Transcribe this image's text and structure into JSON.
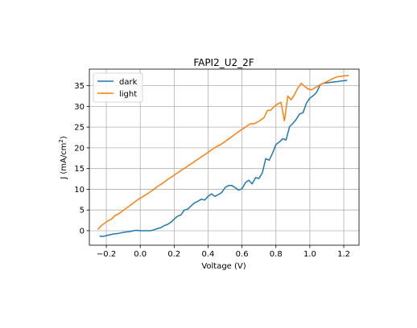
{
  "chart_data": {
    "type": "line",
    "title": "FAPI2_U2_2F",
    "xlabel": "Voltage (V)",
    "ylabel_main": "J (mA/cm",
    "ylabel_sup": "2",
    "ylabel_end": ")",
    "xlim": [
      -0.3,
      1.29
    ],
    "ylim": [
      -3.5,
      39
    ],
    "xticks": [
      -0.2,
      0.0,
      0.2,
      0.4,
      0.6,
      0.8,
      1.0,
      1.2
    ],
    "xtick_labels": [
      "−0.2",
      "0.0",
      "0.2",
      "0.4",
      "0.6",
      "0.8",
      "1.0",
      "1.2"
    ],
    "yticks": [
      0,
      5,
      10,
      15,
      20,
      25,
      30,
      35
    ],
    "ytick_labels": [
      "0",
      "5",
      "10",
      "15",
      "20",
      "25",
      "30",
      "35"
    ],
    "grid": true,
    "legend_position": "top-left",
    "series": [
      {
        "name": "dark",
        "color": "#1f77b4",
        "x": [
          -0.24,
          -0.22,
          -0.2,
          -0.18,
          -0.16,
          -0.14,
          -0.12,
          -0.1,
          -0.08,
          -0.06,
          -0.04,
          -0.02,
          0.0,
          0.02,
          0.04,
          0.06,
          0.08,
          0.1,
          0.12,
          0.14,
          0.16,
          0.18,
          0.2,
          0.22,
          0.24,
          0.26,
          0.28,
          0.3,
          0.32,
          0.34,
          0.36,
          0.38,
          0.4,
          0.42,
          0.44,
          0.46,
          0.48,
          0.5,
          0.52,
          0.54,
          0.56,
          0.58,
          0.6,
          0.62,
          0.64,
          0.66,
          0.68,
          0.7,
          0.72,
          0.74,
          0.76,
          0.78,
          0.8,
          0.82,
          0.84,
          0.86,
          0.88,
          0.9,
          0.92,
          0.94,
          0.96,
          0.98,
          1.0,
          1.02,
          1.04,
          1.06,
          1.08,
          1.1,
          1.12,
          1.14,
          1.16,
          1.18,
          1.2,
          1.22
        ],
        "y": [
          -1.3,
          -1.4,
          -1.2,
          -1.0,
          -0.8,
          -0.7,
          -0.6,
          -0.4,
          -0.3,
          -0.2,
          0.0,
          0.1,
          0.0,
          0.0,
          0.0,
          0.0,
          0.2,
          0.5,
          0.7,
          1.2,
          1.5,
          2.0,
          2.8,
          3.5,
          3.8,
          5.0,
          5.2,
          6.0,
          6.7,
          7.1,
          7.6,
          7.4,
          8.3,
          8.9,
          8.3,
          8.7,
          9.2,
          10.4,
          10.9,
          10.9,
          10.4,
          9.8,
          10.1,
          11.6,
          12.2,
          11.3,
          12.8,
          12.6,
          14.0,
          17.4,
          17.0,
          18.7,
          20.8,
          21.4,
          22.2,
          21.9,
          25.1,
          25.9,
          26.9,
          28.2,
          28.5,
          30.8,
          32.0,
          32.6,
          33.4,
          35.2,
          35.6,
          35.7,
          35.8,
          35.9,
          36.0,
          36.1,
          36.2,
          36.3
        ]
      },
      {
        "name": "light",
        "color": "#ff7f0e",
        "x": [
          -0.25,
          -0.23,
          -0.21,
          -0.19,
          -0.17,
          -0.15,
          -0.13,
          -0.11,
          -0.09,
          -0.07,
          -0.05,
          -0.03,
          -0.01,
          0.01,
          0.03,
          0.05,
          0.07,
          0.09,
          0.11,
          0.13,
          0.15,
          0.17,
          0.19,
          0.21,
          0.23,
          0.25,
          0.27,
          0.29,
          0.31,
          0.33,
          0.35,
          0.37,
          0.39,
          0.41,
          0.43,
          0.45,
          0.47,
          0.49,
          0.51,
          0.53,
          0.55,
          0.57,
          0.59,
          0.61,
          0.63,
          0.65,
          0.67,
          0.69,
          0.71,
          0.73,
          0.75,
          0.77,
          0.79,
          0.81,
          0.83,
          0.85,
          0.87,
          0.89,
          0.91,
          0.93,
          0.95,
          0.97,
          0.99,
          1.01,
          1.03,
          1.05,
          1.07,
          1.09,
          1.11,
          1.13,
          1.15,
          1.17,
          1.19,
          1.21,
          1.23
        ],
        "y": [
          0.3,
          1.2,
          1.8,
          2.4,
          2.8,
          3.6,
          4.0,
          4.6,
          5.2,
          5.8,
          6.4,
          7.0,
          7.6,
          8.1,
          8.6,
          9.1,
          9.7,
          10.3,
          10.9,
          11.4,
          12.0,
          12.6,
          13.1,
          13.7,
          14.2,
          14.8,
          15.3,
          15.9,
          16.4,
          17.0,
          17.5,
          18.1,
          18.6,
          19.2,
          19.8,
          20.3,
          20.7,
          21.2,
          21.8,
          22.4,
          23.0,
          23.6,
          24.2,
          24.7,
          25.3,
          25.8,
          25.8,
          26.2,
          26.7,
          27.3,
          29.0,
          29.1,
          30.0,
          30.6,
          31.0,
          26.5,
          32.5,
          31.6,
          32.9,
          34.5,
          35.6,
          34.8,
          34.2,
          34.0,
          34.5,
          35.0,
          35.4,
          35.8,
          36.2,
          36.6,
          37.0,
          37.2,
          37.3,
          37.4,
          37.5
        ]
      }
    ]
  }
}
